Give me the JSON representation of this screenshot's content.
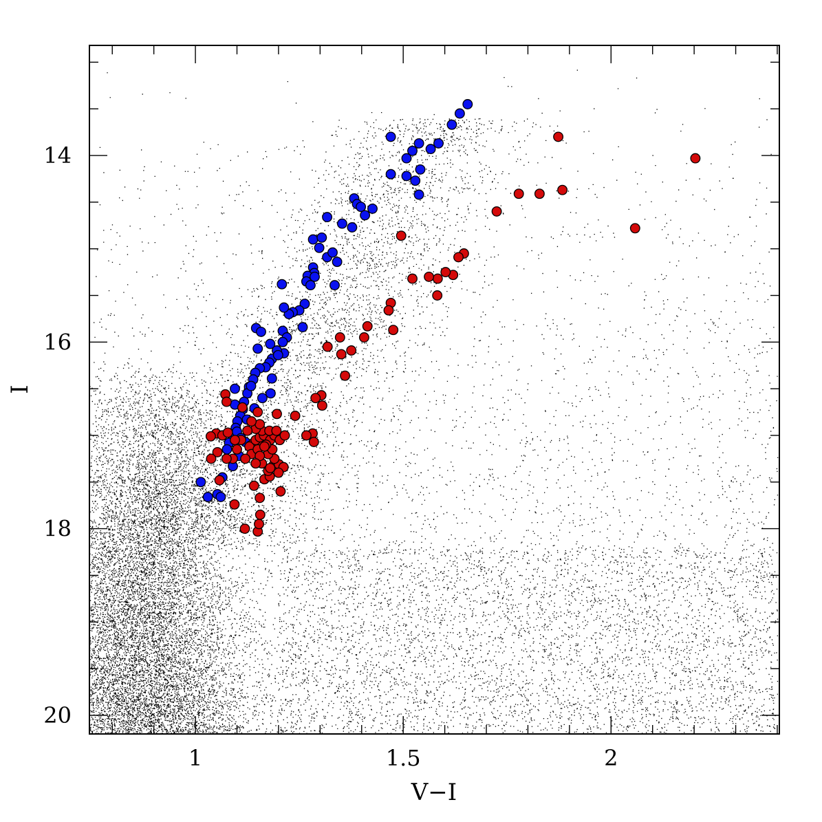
{
  "chart_data": {
    "type": "scatter",
    "title": "",
    "xlabel": "V−I",
    "ylabel": "I",
    "xlim": [
      0.745,
      2.405
    ],
    "ylim": [
      20.2,
      12.82
    ],
    "y_inverted": true,
    "grid": false,
    "legend": "none",
    "x_ticks": [
      {
        "value": 1,
        "label": "1"
      },
      {
        "value": 1.5,
        "label": "1.5"
      },
      {
        "value": 2,
        "label": "2"
      }
    ],
    "y_ticks": [
      {
        "value": 14,
        "label": "14"
      },
      {
        "value": 16,
        "label": "16"
      },
      {
        "value": 18,
        "label": "18"
      },
      {
        "value": 20,
        "label": "20"
      }
    ],
    "colors": {
      "blue": "#0a12f0",
      "red": "#d40a0a",
      "field": "#000000"
    },
    "background_field": {
      "description_kind": "dense field-star point cloud",
      "point_size": "tiny"
    },
    "series": [
      {
        "color": "#0a12f0",
        "points": [
          [
            1.655,
            13.45
          ],
          [
            1.636,
            13.55
          ],
          [
            1.617,
            13.67
          ],
          [
            1.585,
            13.87
          ],
          [
            1.566,
            13.93
          ],
          [
            1.538,
            13.87
          ],
          [
            1.522,
            13.95
          ],
          [
            1.508,
            14.03
          ],
          [
            1.47,
            13.8
          ],
          [
            1.47,
            14.2
          ],
          [
            1.508,
            14.22
          ],
          [
            1.529,
            14.27
          ],
          [
            1.538,
            14.42
          ],
          [
            1.541,
            14.15
          ],
          [
            1.382,
            14.46
          ],
          [
            1.389,
            14.52
          ],
          [
            1.398,
            14.55
          ],
          [
            1.408,
            14.64
          ],
          [
            1.426,
            14.57
          ],
          [
            1.377,
            14.77
          ],
          [
            1.353,
            14.73
          ],
          [
            1.317,
            14.66
          ],
          [
            1.283,
            14.9
          ],
          [
            1.304,
            14.88
          ],
          [
            1.298,
            14.99
          ],
          [
            1.317,
            15.09
          ],
          [
            1.33,
            15.04
          ],
          [
            1.341,
            15.14
          ],
          [
            1.283,
            15.2
          ],
          [
            1.286,
            15.26
          ],
          [
            1.27,
            15.29
          ],
          [
            1.267,
            15.35
          ],
          [
            1.287,
            15.3
          ],
          [
            1.335,
            15.39
          ],
          [
            1.277,
            15.39
          ],
          [
            1.208,
            15.38
          ],
          [
            1.263,
            15.59
          ],
          [
            1.25,
            15.66
          ],
          [
            1.234,
            15.68
          ],
          [
            1.225,
            15.7
          ],
          [
            1.213,
            15.63
          ],
          [
            1.258,
            15.84
          ],
          [
            1.21,
            15.88
          ],
          [
            1.22,
            15.95
          ],
          [
            1.21,
            16.0
          ],
          [
            1.213,
            16.12
          ],
          [
            1.196,
            16.09
          ],
          [
            1.184,
            16.18
          ],
          [
            1.178,
            16.22
          ],
          [
            1.169,
            16.27
          ],
          [
            1.155,
            16.28
          ],
          [
            1.144,
            16.33
          ],
          [
            1.139,
            16.4
          ],
          [
            1.129,
            16.48
          ],
          [
            1.125,
            16.55
          ],
          [
            1.117,
            16.64
          ],
          [
            1.114,
            16.72
          ],
          [
            1.108,
            16.79
          ],
          [
            1.101,
            16.85
          ],
          [
            1.097,
            16.92
          ],
          [
            1.088,
            16.99
          ],
          [
            1.081,
            17.08
          ],
          [
            1.076,
            17.15
          ],
          [
            1.065,
            17.45
          ],
          [
            1.013,
            17.5
          ],
          [
            1.03,
            17.66
          ],
          [
            1.053,
            17.63
          ],
          [
            1.061,
            17.66
          ],
          [
            1.1,
            16.96
          ],
          [
            1.146,
            15.85
          ],
          [
            1.158,
            15.89
          ],
          [
            1.15,
            16.07
          ],
          [
            1.181,
            16.55
          ],
          [
            1.161,
            16.6
          ],
          [
            1.142,
            16.71
          ],
          [
            1.124,
            16.83
          ],
          [
            1.134,
            16.47
          ],
          [
            1.184,
            16.39
          ],
          [
            1.199,
            16.14
          ],
          [
            1.18,
            16.02
          ],
          [
            1.095,
            16.5
          ],
          [
            1.11,
            17.03
          ],
          [
            1.12,
            17.07
          ],
          [
            1.132,
            17.11
          ],
          [
            1.105,
            17.22
          ],
          [
            1.09,
            17.33
          ],
          [
            1.095,
            16.67
          ]
        ]
      },
      {
        "color": "#d40a0a",
        "points": [
          [
            2.203,
            14.03
          ],
          [
            1.873,
            13.8
          ],
          [
            1.883,
            14.37
          ],
          [
            1.828,
            14.41
          ],
          [
            1.778,
            14.41
          ],
          [
            1.725,
            14.6
          ],
          [
            2.058,
            14.78
          ],
          [
            1.495,
            14.86
          ],
          [
            1.646,
            15.05
          ],
          [
            1.633,
            15.09
          ],
          [
            1.62,
            15.28
          ],
          [
            1.602,
            15.25
          ],
          [
            1.583,
            15.32
          ],
          [
            1.562,
            15.3
          ],
          [
            1.522,
            15.32
          ],
          [
            1.582,
            15.5
          ],
          [
            1.47,
            15.58
          ],
          [
            1.465,
            15.66
          ],
          [
            1.476,
            15.87
          ],
          [
            1.414,
            15.83
          ],
          [
            1.406,
            15.95
          ],
          [
            1.375,
            16.09
          ],
          [
            1.36,
            16.36
          ],
          [
            1.348,
            15.95
          ],
          [
            1.351,
            16.13
          ],
          [
            1.318,
            16.05
          ],
          [
            1.303,
            16.57
          ],
          [
            1.289,
            16.6
          ],
          [
            1.305,
            16.68
          ],
          [
            1.282,
            16.98
          ],
          [
            1.285,
            17.07
          ],
          [
            1.267,
            17.0
          ],
          [
            1.24,
            16.79
          ],
          [
            1.196,
            16.77
          ],
          [
            1.15,
            16.75
          ],
          [
            1.072,
            16.56
          ],
          [
            1.075,
            16.64
          ],
          [
            1.113,
            16.7
          ],
          [
            1.05,
            16.98
          ],
          [
            1.065,
            17.0
          ],
          [
            1.078,
            16.97
          ],
          [
            1.037,
            17.01
          ],
          [
            1.053,
            17.18
          ],
          [
            1.038,
            17.25
          ],
          [
            1.058,
            17.48
          ],
          [
            1.094,
            17.74
          ],
          [
            1.119,
            18.0
          ],
          [
            1.15,
            18.03
          ],
          [
            1.153,
            17.95
          ],
          [
            1.156,
            17.85
          ],
          [
            1.155,
            17.67
          ],
          [
            1.141,
            17.54
          ],
          [
            1.166,
            17.47
          ],
          [
            1.179,
            17.44
          ],
          [
            1.188,
            17.32
          ],
          [
            1.201,
            17.31
          ],
          [
            1.205,
            17.6
          ],
          [
            1.212,
            17.34
          ],
          [
            1.2,
            17.4
          ],
          [
            1.175,
            17.38
          ],
          [
            1.19,
            17.25
          ],
          [
            1.175,
            17.2
          ],
          [
            1.16,
            17.1
          ],
          [
            1.15,
            17.08
          ],
          [
            1.14,
            17.08
          ],
          [
            1.13,
            17.12
          ],
          [
            1.145,
            17.05
          ],
          [
            1.155,
            17.02
          ],
          [
            1.165,
            17.0
          ],
          [
            1.16,
            16.95
          ],
          [
            1.145,
            16.93
          ],
          [
            1.18,
            17.05
          ],
          [
            1.19,
            17.0
          ],
          [
            1.203,
            17.05
          ],
          [
            1.178,
            16.95
          ],
          [
            1.135,
            17.2
          ],
          [
            1.12,
            17.25
          ],
          [
            1.11,
            17.05
          ],
          [
            1.1,
            17.15
          ],
          [
            1.09,
            17.25
          ],
          [
            1.16,
            17.3
          ],
          [
            1.185,
            17.15
          ],
          [
            1.17,
            17.1
          ],
          [
            1.15,
            17.15
          ],
          [
            1.155,
            17.22
          ],
          [
            1.145,
            17.3
          ],
          [
            1.18,
            17.35
          ],
          [
            1.125,
            16.95
          ],
          [
            1.155,
            16.88
          ],
          [
            1.195,
            16.95
          ],
          [
            1.075,
            17.25
          ],
          [
            1.095,
            17.05
          ],
          [
            1.135,
            16.85
          ],
          [
            1.215,
            17.0
          ],
          [
            1.166,
            17.12
          ]
        ]
      }
    ]
  }
}
